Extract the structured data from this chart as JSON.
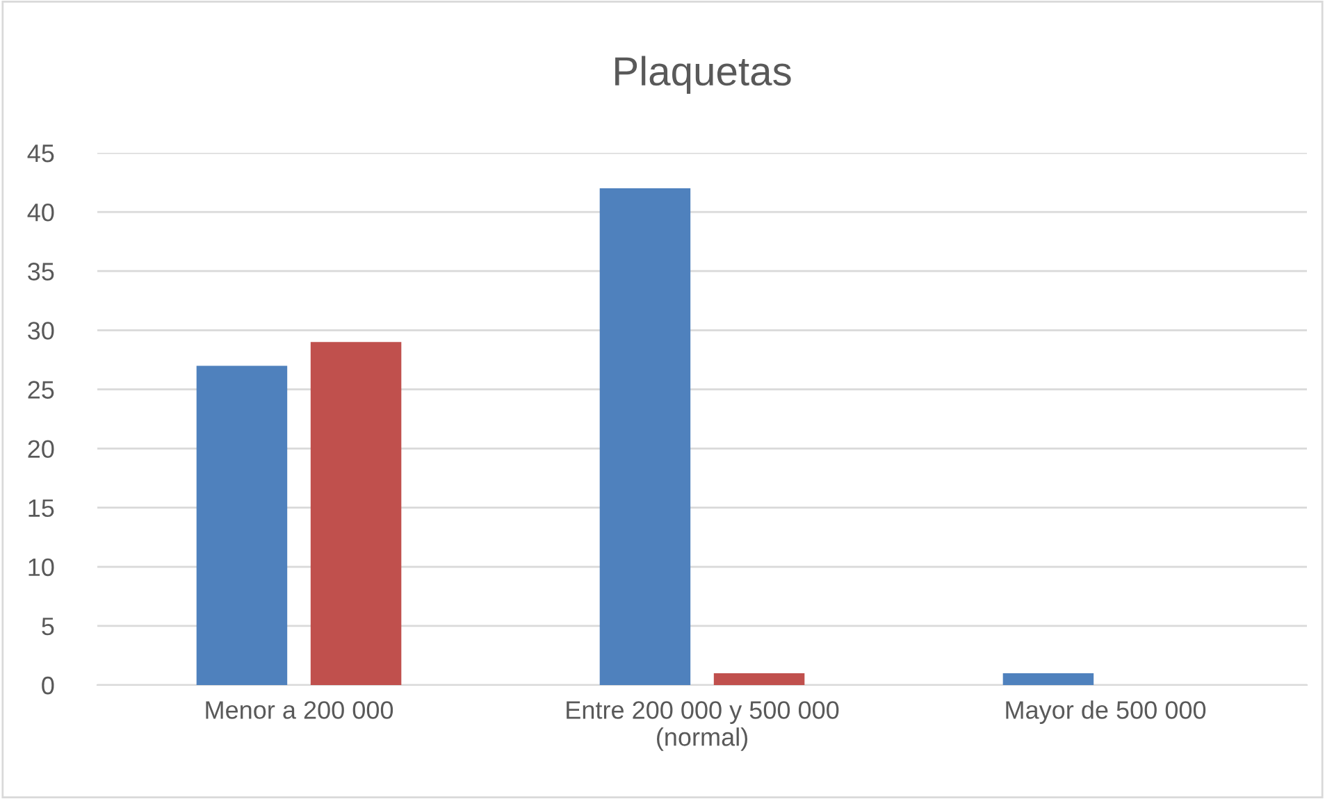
{
  "chart_data": {
    "type": "bar",
    "title": "Plaquetas",
    "categories": [
      "Menor a 200 000",
      "Entre 200 000 y 500 000\n(normal)",
      "Mayor de 500 000"
    ],
    "series": [
      {
        "color": "#4f81bd",
        "values": [
          27,
          42,
          1
        ]
      },
      {
        "color": "#c0504d",
        "values": [
          29,
          1,
          0
        ]
      }
    ],
    "ylim": [
      0,
      45
    ],
    "yticks": [
      0,
      5,
      10,
      15,
      20,
      25,
      30,
      35,
      40,
      45
    ],
    "grid": "y",
    "legend": false
  }
}
